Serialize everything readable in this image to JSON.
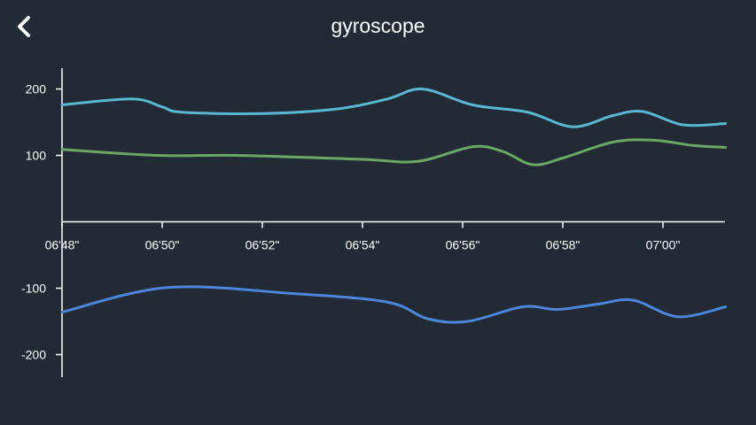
{
  "header": {
    "title": "gyroscope",
    "back_icon": "chevron-left-icon"
  },
  "chart_data": {
    "type": "line",
    "title": "gyroscope",
    "xlabel": "",
    "ylabel": "",
    "x_ticks": [
      "06'48\"",
      "06'50\"",
      "06'52\"",
      "06'54\"",
      "06'56\"",
      "06'58\"",
      "07'00\""
    ],
    "y_ticks": [
      {
        "value": 200,
        "label": "200"
      },
      {
        "value": 100,
        "label": "100"
      },
      {
        "value": -100,
        "label": "-100"
      },
      {
        "value": -200,
        "label": "-200"
      }
    ],
    "xlim": [
      0,
      13.25
    ],
    "ylim": [
      -233,
      233
    ],
    "axis_color": "#ffffff",
    "grid": false,
    "series": [
      {
        "color": "#5ab7d2",
        "points": [
          [
            0,
            176
          ],
          [
            1.4,
            185
          ],
          [
            2.0,
            173
          ],
          [
            2.4,
            165
          ],
          [
            4.0,
            163
          ],
          [
            5.5,
            170
          ],
          [
            6.5,
            185
          ],
          [
            7.2,
            200
          ],
          [
            8.2,
            176
          ],
          [
            9.3,
            165
          ],
          [
            10.2,
            143
          ],
          [
            11.0,
            160
          ],
          [
            11.6,
            166
          ],
          [
            12.4,
            146
          ],
          [
            13.25,
            148
          ]
        ]
      },
      {
        "color": "#6aa865",
        "points": [
          [
            0,
            109
          ],
          [
            1.9,
            100
          ],
          [
            3.5,
            100
          ],
          [
            6.0,
            94
          ],
          [
            7.1,
            91
          ],
          [
            8.2,
            113
          ],
          [
            8.8,
            106
          ],
          [
            9.4,
            86
          ],
          [
            10.0,
            96
          ],
          [
            11.0,
            120
          ],
          [
            11.8,
            123
          ],
          [
            12.6,
            115
          ],
          [
            13.25,
            112
          ]
        ]
      },
      {
        "color": "#4c86dc",
        "points": [
          [
            0,
            -136
          ],
          [
            2.1,
            -99
          ],
          [
            4.6,
            -108
          ],
          [
            6.5,
            -121
          ],
          [
            7.3,
            -146
          ],
          [
            8.1,
            -150
          ],
          [
            9.2,
            -128
          ],
          [
            9.9,
            -132
          ],
          [
            10.7,
            -124
          ],
          [
            11.4,
            -118
          ],
          [
            12.3,
            -143
          ],
          [
            13.25,
            -128
          ]
        ]
      }
    ]
  }
}
